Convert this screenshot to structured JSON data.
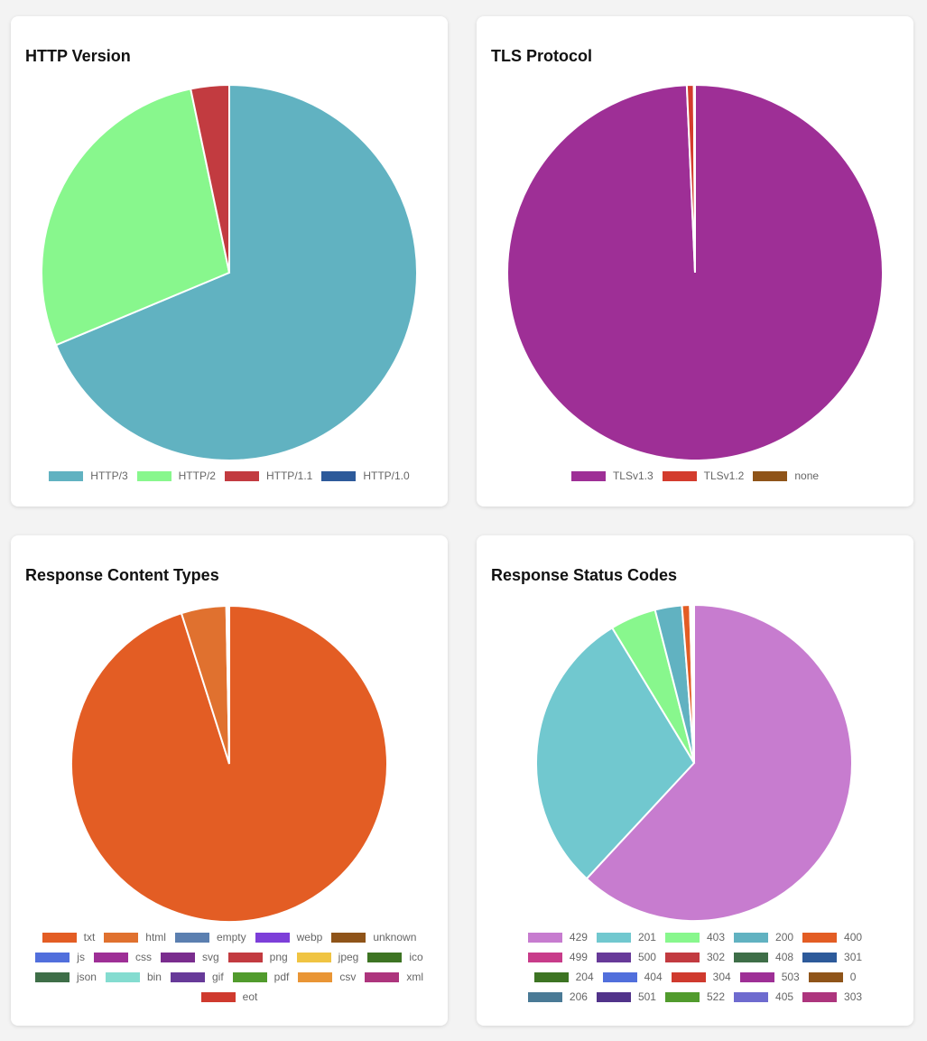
{
  "chart_data": [
    {
      "type": "pie",
      "title": "HTTP Version",
      "labels": [
        "HTTP/3",
        "HTTP/2",
        "HTTP/1.1",
        "HTTP/1.0"
      ],
      "values": [
        68.7,
        28.0,
        3.3,
        0.0
      ],
      "colors": [
        "#61b2c1",
        "#88f78d",
        "#c23b40",
        "#2d5a9a"
      ],
      "legend": "bottom"
    },
    {
      "type": "pie",
      "title": "TLS Protocol",
      "labels": [
        "TLSv1.3",
        "TLSv1.2",
        "none"
      ],
      "values": [
        99.3,
        0.6,
        0.1
      ],
      "colors": [
        "#9e2f96",
        "#d33c2d",
        "#8f5419"
      ],
      "legend": "bottom"
    },
    {
      "type": "pie",
      "title": "Response Content Types",
      "labels": [
        "txt",
        "html",
        "empty",
        "webp",
        "unknown",
        "js",
        "css",
        "svg",
        "png",
        "jpeg",
        "ico",
        "json",
        "bin",
        "gif",
        "pdf",
        "csv",
        "xml",
        "eot"
      ],
      "values": [
        95.1,
        4.6,
        0.15,
        0.01,
        0.01,
        0.01,
        0.01,
        0.01,
        0.01,
        0.01,
        0.01,
        0.01,
        0.01,
        0.01,
        0.01,
        0.01,
        0.01,
        0.01
      ],
      "colors": [
        "#e35d24",
        "#e0712f",
        "#5b7fb0",
        "#7d3fd9",
        "#8f5419",
        "#516fdc",
        "#9e2f96",
        "#7a2d8e",
        "#c23b40",
        "#f0c442",
        "#3d7423",
        "#3e6e48",
        "#84dcd0",
        "#673a99",
        "#519b2d",
        "#e99535",
        "#ad357d",
        "#cf3a2e"
      ],
      "legend": "bottom"
    },
    {
      "type": "pie",
      "title": "Response Status Codes",
      "labels": [
        "429",
        "201",
        "403",
        "200",
        "400",
        "499",
        "500",
        "302",
        "408",
        "301",
        "204",
        "404",
        "304",
        "503",
        "0",
        "206",
        "501",
        "522",
        "405",
        "303"
      ],
      "values": [
        61.9,
        29.4,
        4.7,
        2.75,
        0.8,
        0.15,
        0.02,
        0.02,
        0.02,
        0.02,
        0.02,
        0.02,
        0.02,
        0.02,
        0.02,
        0.02,
        0.02,
        0.02,
        0.02,
        0.02
      ],
      "colors": [
        "#c77ccf",
        "#71c8cf",
        "#88f78d",
        "#61b2c1",
        "#e35d24",
        "#c83c8a",
        "#673a99",
        "#c23b40",
        "#3e6e48",
        "#2d5a9a",
        "#3d7423",
        "#516fdc",
        "#cf3a2e",
        "#9e2f96",
        "#8f5419",
        "#4a7a96",
        "#51338a",
        "#519b2d",
        "#6e6bcf",
        "#ad357d"
      ],
      "legend": "bottom"
    }
  ]
}
